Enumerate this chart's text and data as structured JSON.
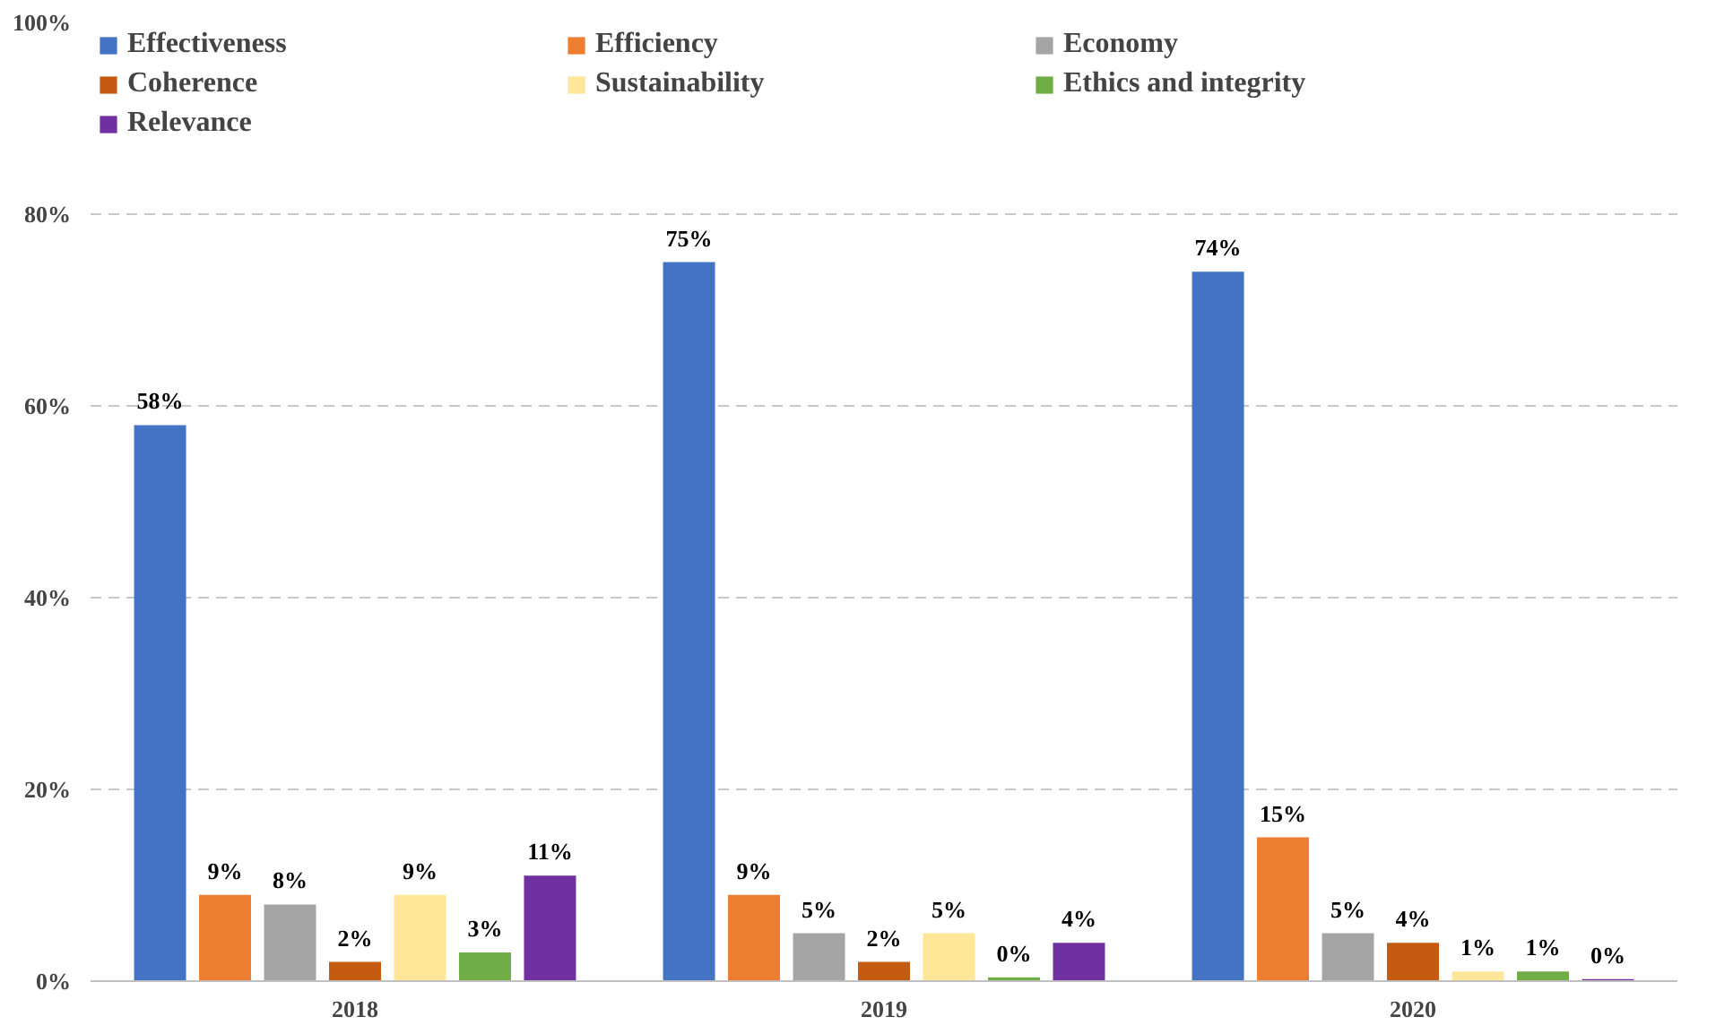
{
  "chart_data": {
    "type": "bar",
    "categories": [
      "2018",
      "2019",
      "2020"
    ],
    "series": [
      {
        "name": "Effectiveness",
        "color": "#4472c4",
        "values": [
          58,
          75,
          74
        ],
        "value_labels": [
          "58%",
          "75%",
          "74%"
        ]
      },
      {
        "name": "Efficiency",
        "color": "#ed7d31",
        "values": [
          9,
          9,
          15
        ],
        "value_labels": [
          "9%",
          "9%",
          "15%"
        ]
      },
      {
        "name": "Economy",
        "color": "#a5a5a5",
        "values": [
          8,
          5,
          5
        ],
        "value_labels": [
          "8%",
          "5%",
          "5%"
        ]
      },
      {
        "name": "Coherence",
        "color": "#c55a11",
        "values": [
          2,
          2,
          4
        ],
        "value_labels": [
          "2%",
          "2%",
          "4%"
        ]
      },
      {
        "name": "Sustainability",
        "color": "#ffe699",
        "values": [
          9,
          5,
          1
        ],
        "value_labels": [
          "9%",
          "5%",
          "1%"
        ]
      },
      {
        "name": "Ethics and integrity",
        "color": "#70ad47",
        "values": [
          3,
          0.4,
          1
        ],
        "value_labels": [
          "3%",
          "0%",
          "1%"
        ]
      },
      {
        "name": "Relevance",
        "color": "#7030a0",
        "values": [
          11,
          4,
          0.2
        ],
        "value_labels": [
          "11%",
          "4%",
          "0%"
        ]
      }
    ],
    "ylim": [
      0,
      100
    ],
    "yticks": [
      {
        "value": 0,
        "label": "0%"
      },
      {
        "value": 20,
        "label": "20%"
      },
      {
        "value": 40,
        "label": "40%"
      },
      {
        "value": 60,
        "label": "60%"
      },
      {
        "value": 80,
        "label": "80%"
      },
      {
        "value": 100,
        "label": "100%"
      }
    ],
    "grid": "y",
    "legend": "top left"
  }
}
